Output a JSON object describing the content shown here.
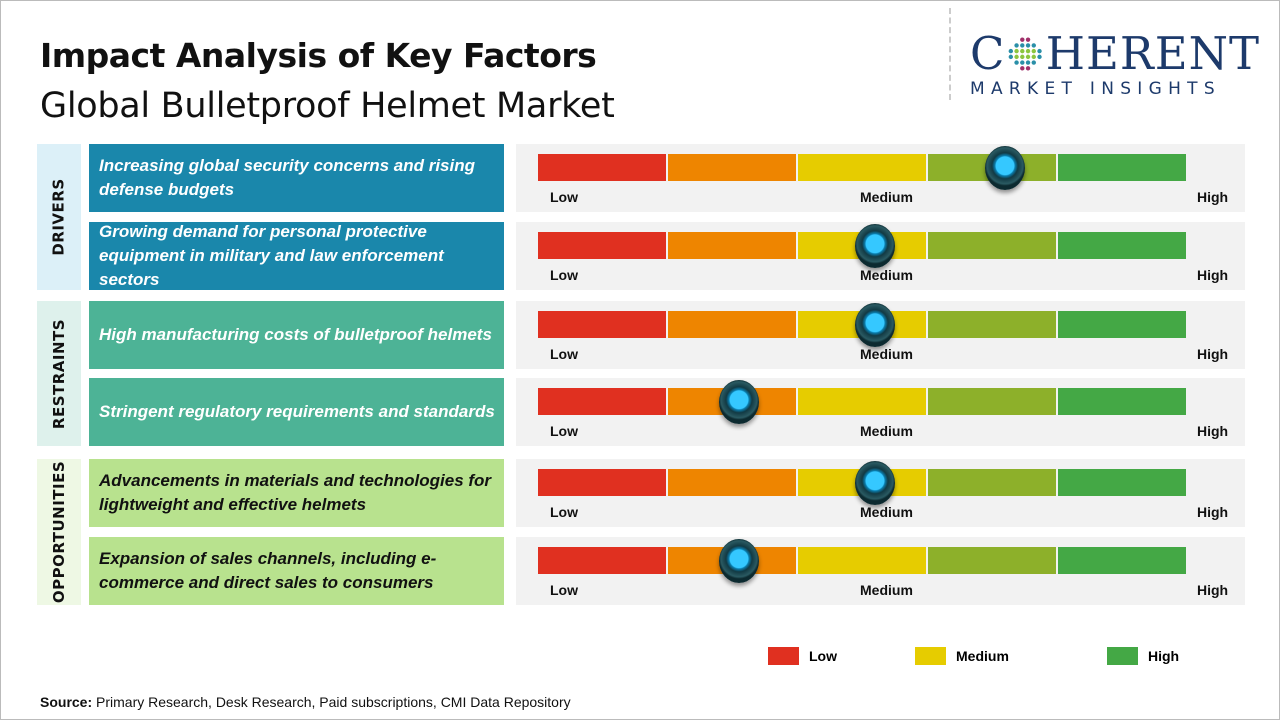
{
  "title": "Impact Analysis of Key Factors",
  "subtitle": "Global Bulletproof Helmet Market",
  "logo": {
    "main": "COHERENT",
    "sub": "MARKET INSIGHTS"
  },
  "colors": {
    "low": "#e03020",
    "low_mid": "#ee8500",
    "medium": "#e6cc00",
    "mid_high": "#8db02a",
    "high": "#44a845",
    "drivers": "#1a87ab",
    "restraints": "#4db396",
    "opportunities": "#b8e28e"
  },
  "scale_labels": {
    "low": "Low",
    "medium": "Medium",
    "high": "High"
  },
  "chart_data": {
    "type": "gauge",
    "scale": [
      "Low",
      "Medium",
      "High"
    ],
    "categories": [
      {
        "name": "DRIVERS",
        "factors": [
          {
            "text": "Increasing global security concerns and rising defense budgets",
            "impact_pct": 72
          },
          {
            "text": "Growing demand for personal protective equipment in military and law enforcement sectors",
            "impact_pct": 52
          }
        ]
      },
      {
        "name": "RESTRAINTS",
        "factors": [
          {
            "text": "High manufacturing costs of bulletproof helmets",
            "impact_pct": 52
          },
          {
            "text": "Stringent regulatory requirements and standards",
            "impact_pct": 31
          }
        ]
      },
      {
        "name": "OPPORTUNITIES",
        "factors": [
          {
            "text": "Advancements in materials and technologies for lightweight and effective helmets",
            "impact_pct": 52
          },
          {
            "text": "Expansion of sales channels, including e-commerce and direct sales to consumers",
            "impact_pct": 31
          }
        ]
      }
    ]
  },
  "legend": [
    "Low",
    "Medium",
    "High"
  ],
  "source": {
    "label": "Source:",
    "text": " Primary Research, Desk Research, Paid subscriptions, CMI Data Repository"
  }
}
